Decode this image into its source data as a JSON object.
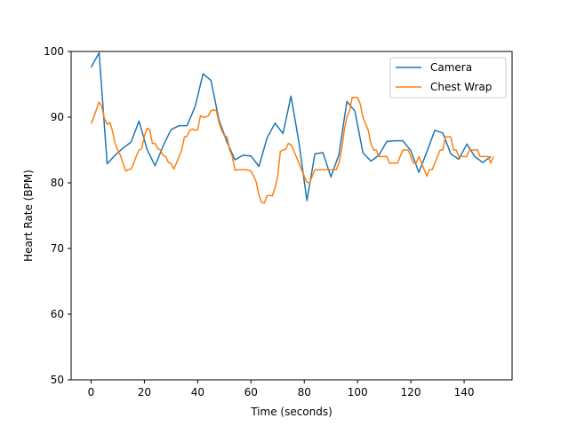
{
  "chart_data": {
    "type": "line",
    "title": "",
    "xlabel": "Time (seconds)",
    "ylabel": "Heart Rate (BPM)",
    "xlim": [
      -7.5,
      158
    ],
    "ylim": [
      50,
      100
    ],
    "xticks": [
      0,
      20,
      40,
      60,
      80,
      100,
      120,
      140
    ],
    "yticks": [
      50,
      60,
      70,
      80,
      90,
      100
    ],
    "grid": false,
    "legend_position": "top-right",
    "series": [
      {
        "name": "Camera",
        "color": "#1f77b4",
        "x": [
          0,
          3,
          6,
          9,
          12,
          15,
          18,
          21,
          24,
          27,
          30,
          33,
          36,
          39,
          42,
          45,
          48,
          51,
          54,
          57,
          60,
          63,
          66,
          69,
          72,
          75,
          78,
          81,
          84,
          87,
          90,
          93,
          96,
          99,
          102,
          105,
          108,
          111,
          114,
          117,
          120,
          123,
          126,
          129,
          132,
          135,
          138,
          141,
          144,
          147,
          150
        ],
        "y": [
          97.6,
          99.8,
          82.9,
          84.2,
          85.3,
          86.2,
          89.4,
          85.1,
          82.6,
          85.6,
          88.1,
          88.7,
          88.7,
          91.6,
          96.6,
          95.6,
          89.6,
          86.2,
          83.5,
          84.2,
          84.1,
          82.5,
          86.8,
          89.1,
          87.5,
          93.2,
          86.2,
          77.3,
          84.4,
          84.6,
          80.9,
          84.3,
          92.4,
          90.9,
          84.6,
          83.3,
          84.2,
          86.3,
          86.4,
          86.4,
          84.9,
          81.6,
          84.7,
          88.0,
          87.6,
          84.4,
          83.6,
          85.9,
          84.0,
          83.1,
          84.0
        ]
      },
      {
        "name": "Chest Wrap",
        "color": "#ff7f0e",
        "x": [
          0,
          1,
          2,
          3,
          4,
          5,
          6,
          7,
          8,
          9,
          10,
          11,
          12,
          13,
          14,
          15,
          16,
          17,
          18,
          19,
          20,
          21,
          22,
          23,
          24,
          25,
          26,
          27,
          28,
          29,
          30,
          31,
          32,
          33,
          34,
          35,
          36,
          37,
          38,
          39,
          40,
          41,
          42,
          43,
          44,
          45,
          46,
          47,
          48,
          49,
          50,
          51,
          52,
          53,
          54,
          55,
          56,
          57,
          58,
          59,
          60,
          61,
          62,
          63,
          64,
          65,
          66,
          67,
          68,
          69,
          70,
          71,
          72,
          73,
          74,
          75,
          76,
          77,
          78,
          79,
          80,
          81,
          82,
          83,
          84,
          85,
          86,
          87,
          88,
          89,
          90,
          91,
          92,
          93,
          94,
          95,
          96,
          97,
          98,
          99,
          100,
          101,
          102,
          103,
          104,
          105,
          106,
          107,
          108,
          109,
          110,
          111,
          112,
          113,
          114,
          115,
          116,
          117,
          118,
          119,
          120,
          121,
          122,
          123,
          124,
          125,
          126,
          127,
          128,
          129,
          130,
          131,
          132,
          133,
          134,
          135,
          136,
          137,
          138,
          139,
          140,
          141,
          142,
          143,
          144,
          145,
          146,
          147,
          148,
          149,
          150,
          151
        ],
        "y": [
          89.0,
          90.0,
          91.2,
          92.3,
          91.6,
          89.8,
          88.9,
          89.2,
          87.9,
          86.0,
          85.0,
          84.2,
          83.0,
          81.8,
          82.0,
          82.1,
          83.0,
          84.1,
          85.0,
          85.2,
          87.1,
          88.3,
          88.1,
          86.0,
          86.0,
          85.2,
          85.0,
          84.2,
          84.0,
          83.1,
          83.0,
          82.1,
          83.0,
          84.0,
          85.0,
          87.0,
          87.1,
          88.0,
          88.2,
          88.0,
          88.1,
          90.2,
          90.0,
          90.0,
          90.2,
          91.0,
          91.1,
          91.0,
          89.2,
          88.0,
          87.2,
          87.0,
          85.0,
          84.0,
          81.9,
          82.0,
          82.0,
          82.0,
          82.0,
          81.9,
          81.8,
          81.0,
          80.1,
          78.1,
          77.0,
          76.9,
          78.0,
          78.1,
          78.0,
          79.2,
          80.9,
          84.8,
          85.0,
          85.1,
          86.0,
          85.8,
          85.0,
          84.0,
          83.0,
          82.0,
          81.0,
          80.1,
          80.0,
          81.0,
          82.0,
          82.0,
          82.0,
          82.0,
          82.0,
          82.0,
          82.0,
          82.0,
          82.0,
          83.0,
          85.0,
          88.0,
          90.0,
          91.0,
          93.0,
          93.0,
          93.0,
          92.0,
          90.0,
          89.0,
          88.0,
          86.0,
          85.0,
          85.0,
          84.0,
          84.0,
          84.0,
          84.0,
          83.0,
          83.0,
          83.0,
          83.0,
          84.0,
          85.0,
          85.0,
          85.0,
          84.0,
          83.0,
          83.0,
          84.0,
          83.0,
          82.0,
          81.0,
          82.0,
          82.0,
          83.0,
          84.0,
          85.0,
          85.0,
          87.0,
          87.0,
          87.0,
          85.0,
          85.0,
          84.0,
          84.0,
          84.0,
          84.0,
          85.0,
          85.0,
          85.0,
          85.0,
          84.0,
          84.0,
          84.0,
          84.0,
          83.0,
          84.0
        ]
      }
    ]
  }
}
